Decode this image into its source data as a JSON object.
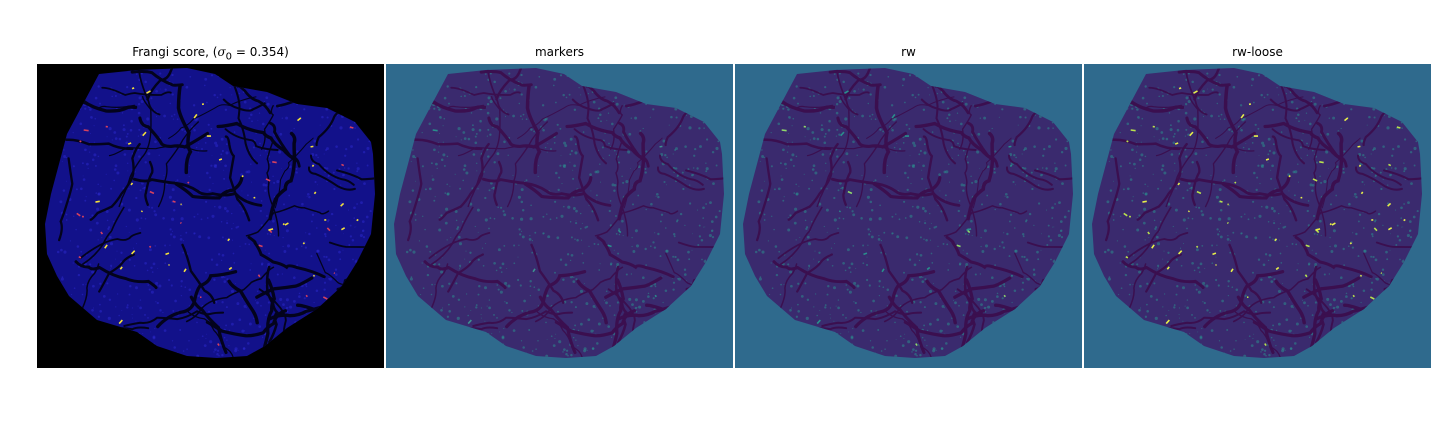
{
  "figure": {
    "panels": [
      {
        "title_prefix": "Frangi score, (",
        "title_math": "σ",
        "title_sub": "0",
        "title_suffix": " = 0.354)",
        "background_color": "#000000",
        "tissue_color": "#12118a",
        "vessel_color": "#03031c",
        "highlight_color": "#d6415e",
        "highlight_alt_color": "#f5e23b"
      },
      {
        "title": "markers",
        "background_color": "#2f6a8d",
        "tissue_color": "#3a2a6e",
        "vessel_color": "#3b0f4f",
        "highlight_color": "#2a8f8c",
        "highlight_alt_color": "#3e8f8f"
      },
      {
        "title": "rw",
        "background_color": "#2f6a8d",
        "tissue_color": "#3a2a6e",
        "vessel_color": "#3b0f4f",
        "highlight_color": "#8fd96b",
        "highlight_alt_color": "#2a8f8c"
      },
      {
        "title": "rw-loose",
        "background_color": "#2f6a8d",
        "tissue_color": "#3a2a6e",
        "vessel_color": "#3b0f4f",
        "highlight_color": "#b9e34d",
        "highlight_alt_color": "#e7f04a"
      }
    ]
  }
}
